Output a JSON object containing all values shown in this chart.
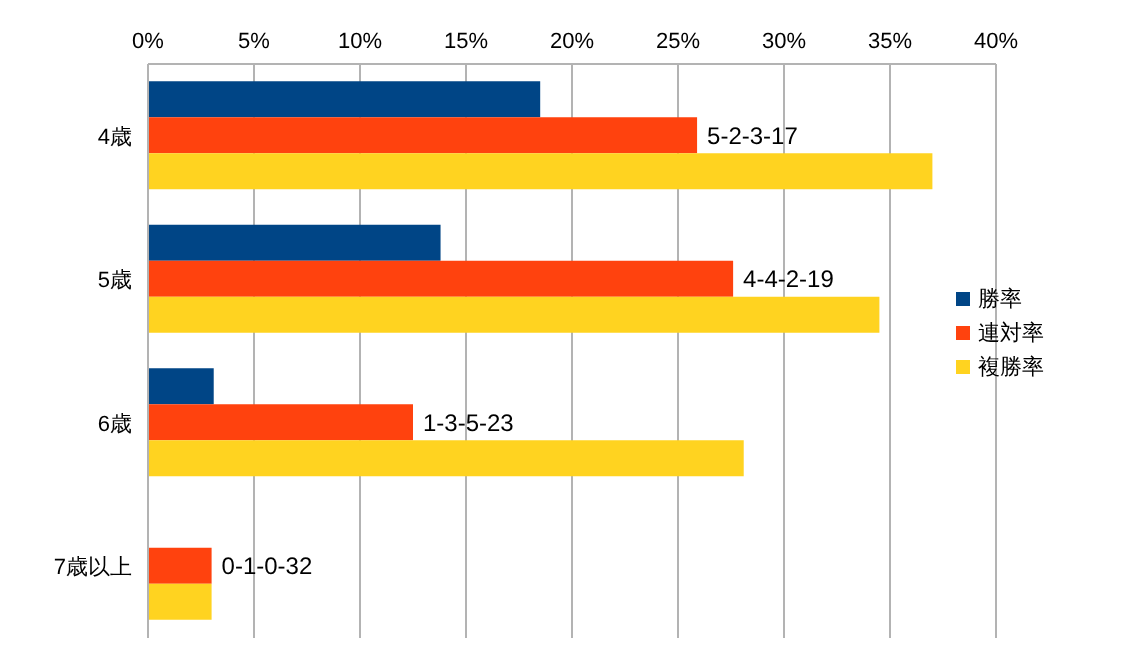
{
  "chart_data": {
    "type": "bar",
    "orientation": "horizontal",
    "categories": [
      "4歳",
      "5歳",
      "6歳",
      "7歳以上"
    ],
    "series": [
      {
        "name": "勝率",
        "color": "#004586",
        "values": [
          18.5,
          13.8,
          3.1,
          0
        ]
      },
      {
        "name": "連対率",
        "color": "#ff420e",
        "values": [
          25.9,
          27.6,
          12.5,
          3.0
        ],
        "value_labels": [
          "5-2-3-17",
          "4-4-2-19",
          "1-3-5-23",
          "0-1-0-32"
        ]
      },
      {
        "name": "複勝率",
        "color": "#ffd320",
        "values": [
          37.0,
          34.5,
          28.1,
          3.0
        ]
      }
    ],
    "xlim": [
      0,
      40
    ],
    "xticks": [
      {
        "value": 0,
        "label": "0%"
      },
      {
        "value": 5,
        "label": "5%"
      },
      {
        "value": 10,
        "label": "10%"
      },
      {
        "value": 15,
        "label": "15%"
      },
      {
        "value": 20,
        "label": "20%"
      },
      {
        "value": 25,
        "label": "25%"
      },
      {
        "value": 30,
        "label": "30%"
      },
      {
        "value": 35,
        "label": "35%"
      },
      {
        "value": 40,
        "label": "40%"
      }
    ],
    "grid": "x",
    "legend": "right"
  }
}
